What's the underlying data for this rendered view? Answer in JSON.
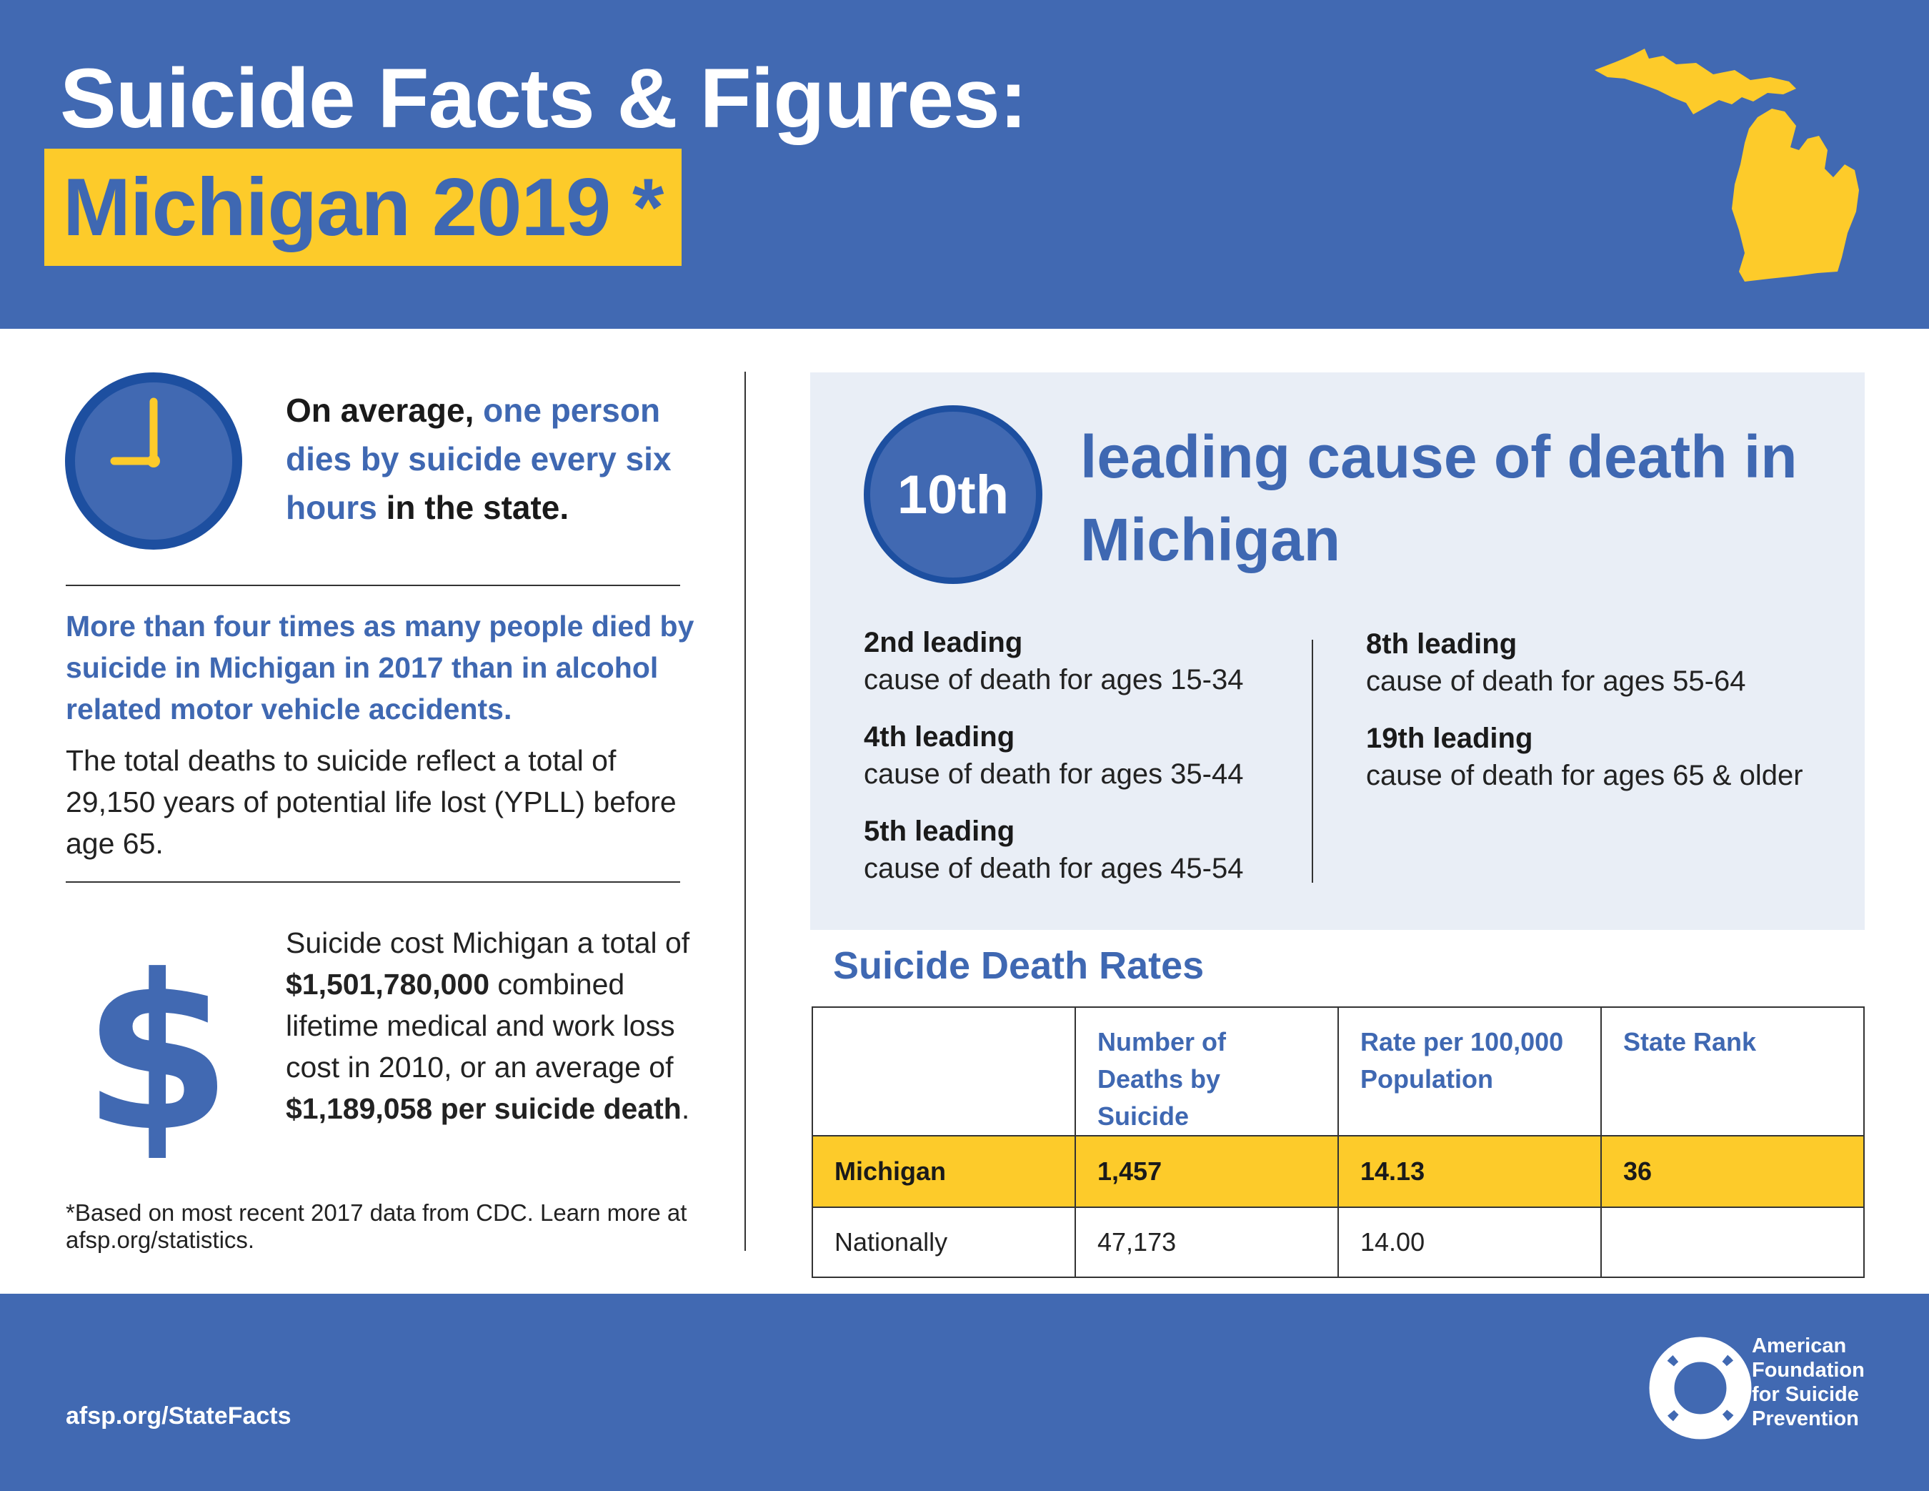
{
  "header": {
    "title": "Suicide Facts & Figures:",
    "subtitle": "Michigan 2019 *",
    "map_icon": "michigan-map-icon",
    "colors": {
      "background": "#4169b2",
      "highlight": "#fdcb2a"
    }
  },
  "clock_section": {
    "icon": "clock-icon",
    "lead": "On average,",
    "highlight": "one person dies by suicide every six hours",
    "tail": "in the state."
  },
  "comparison": {
    "headline": "More than four times as many people died by suicide in Michigan in 2017 than in alcohol related motor vehicle accidents.",
    "ypll": "The total deaths to suicide reflect a total of 29,150 years of potential life lost (YPLL) before age 65."
  },
  "cost": {
    "icon": "dollar-sign-icon",
    "part1": "Suicide cost Michigan a total of",
    "total": "$1,501,780,000",
    "part2": "combined lifetime medical and work loss cost in 2010, or an average of",
    "average": "$1,189,058 per suicide death",
    "part3": "."
  },
  "footnote": "*Based on most recent 2017 data from CDC. Learn more at afsp.org/statistics.",
  "leading": {
    "rank": "10th",
    "title": "leading cause of death in Michigan",
    "ages": [
      {
        "rank": "2nd leading",
        "desc": "cause of death for ages 15-34"
      },
      {
        "rank": "4th leading",
        "desc": "cause of death for ages 35-44"
      },
      {
        "rank": "5th leading",
        "desc": "cause of death for ages 45-54"
      },
      {
        "rank": "8th leading",
        "desc": "cause of death for ages 55-64"
      },
      {
        "rank": "19th leading",
        "desc": "cause of death for ages 65 & older"
      }
    ]
  },
  "rates": {
    "title": "Suicide Death Rates",
    "headers": [
      "",
      "Number of Deaths by Suicide",
      "Rate per 100,000 Population",
      "State Rank"
    ],
    "rows": [
      [
        "Michigan",
        "1,457",
        "14.13",
        "36"
      ],
      [
        "Nationally",
        "47,173",
        "14.00",
        ""
      ]
    ]
  },
  "footer": {
    "url": "afsp.org/StateFacts",
    "logo_icon": "lifebuoy-icon",
    "org_lines": [
      "American",
      "Foundation",
      "for Suicide",
      "Prevention"
    ]
  }
}
